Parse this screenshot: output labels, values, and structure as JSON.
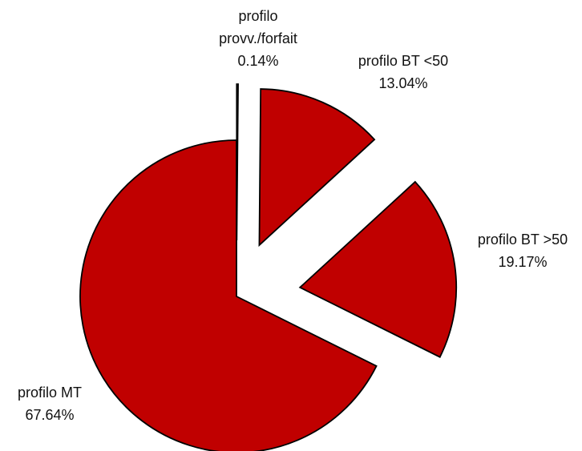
{
  "chart_data": {
    "type": "pie",
    "categories": [
      "profilo provv./forfait",
      "profilo BT <50",
      "profilo BT >50",
      "profilo MT"
    ],
    "values": [
      0.14,
      13.04,
      19.17,
      67.64
    ],
    "value_labels": [
      "0.14%",
      "13.04%",
      "19.17%",
      "67.64%"
    ],
    "color": "#c00000"
  }
}
